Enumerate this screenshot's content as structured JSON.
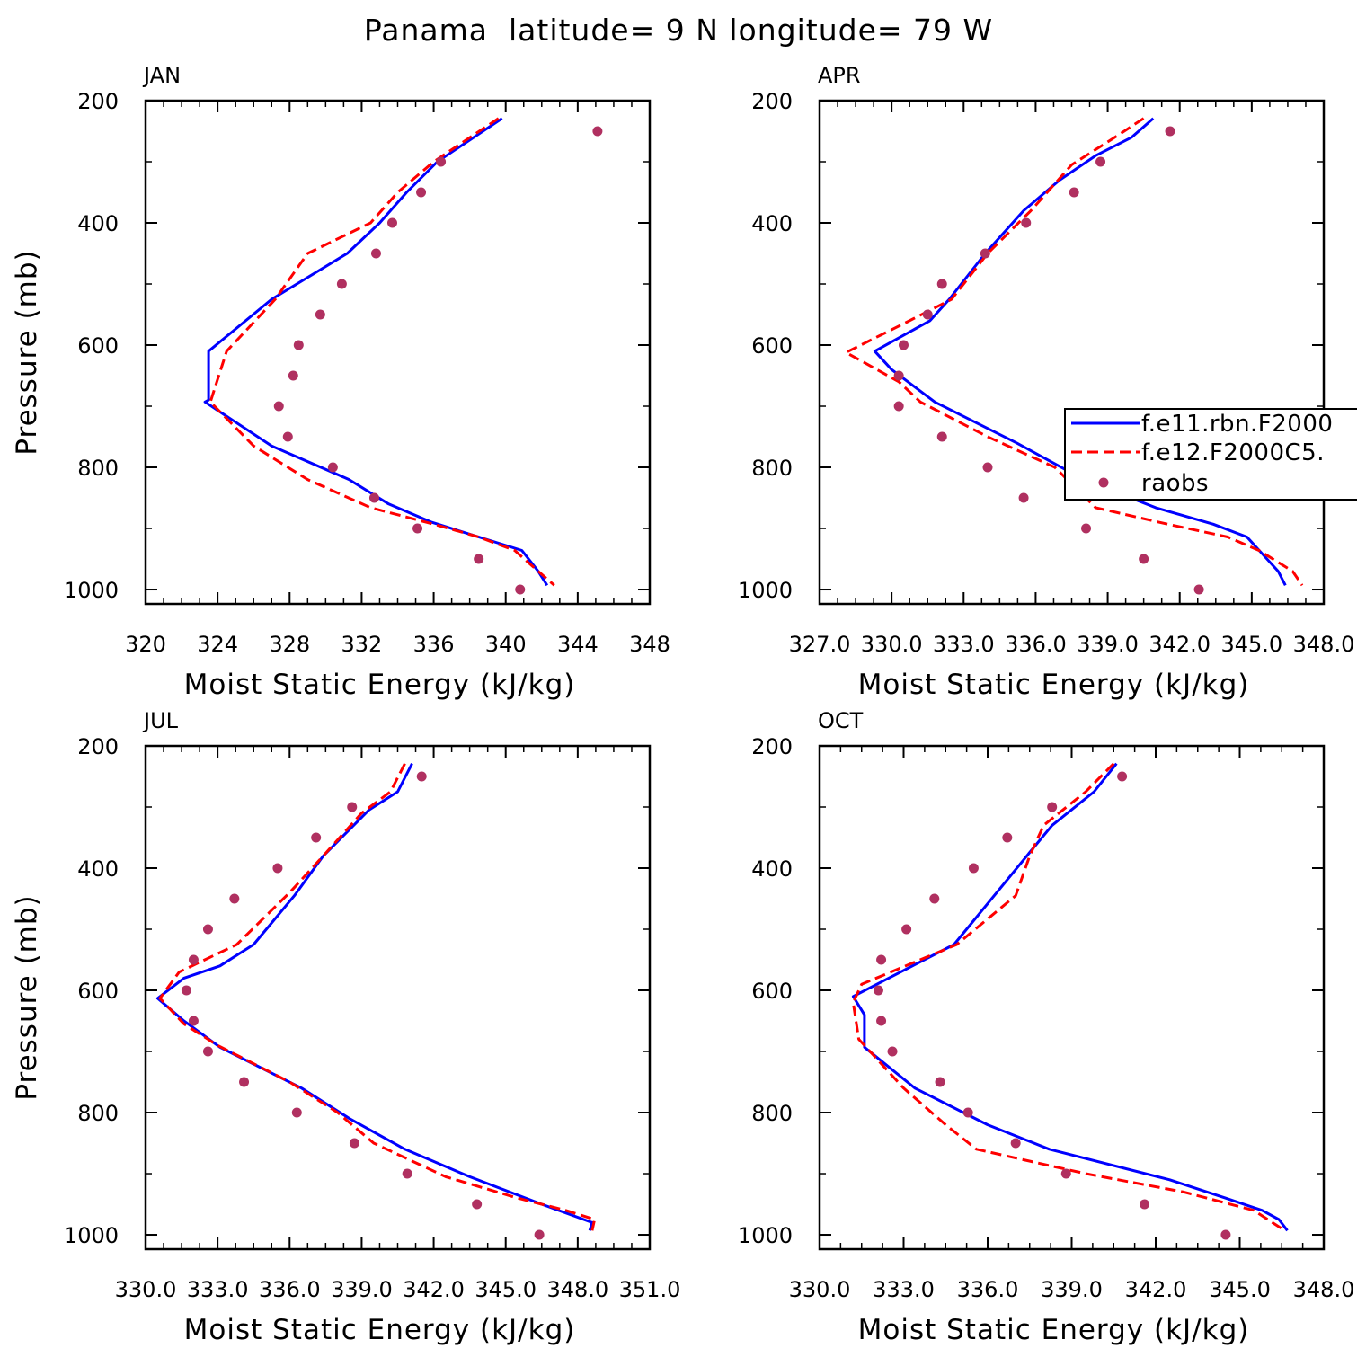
{
  "figure_title": "Panama  latitude= 9 N longitude= 79 W",
  "colors": {
    "model1": "#0000ff",
    "model2": "#ff0000",
    "obs": "#b03060"
  },
  "legend": {
    "entries": [
      "f.e11.rbn.F2000",
      "f.e12.F2000C5.",
      "raobs"
    ]
  },
  "chart_data": [
    {
      "type": "line",
      "title": "JAN",
      "xlabel": "Moist Static Energy (kJ/kg)",
      "ylabel": "Pressure (mb)",
      "xlim": [
        320,
        348
      ],
      "ylim": [
        1000,
        200
      ],
      "xticks": [
        320,
        324,
        328,
        332,
        336,
        340,
        344,
        348
      ],
      "xtick_labels": [
        "320",
        "324",
        "328",
        "332",
        "336",
        "340",
        "344",
        "348"
      ],
      "yticks": [
        200,
        400,
        600,
        800,
        1000
      ],
      "ytick_labels": [
        "200",
        "400",
        "600",
        "800",
        "1000"
      ],
      "series": [
        {
          "name": "f.e11.rbn.F2000",
          "style": "solid",
          "x": [
            339.8,
            336.2,
            334.5,
            333.0,
            331.2,
            327.0,
            323.5,
            323.5,
            323.3,
            327.0,
            331.3,
            333.5,
            335.9,
            338.5,
            340.9,
            341.8,
            342.3
          ],
          "p": [
            229,
            300,
            350,
            400,
            450,
            525,
            610,
            690,
            693,
            765,
            820,
            860,
            890,
            914,
            936,
            970,
            993
          ]
        },
        {
          "name": "f.e12.F2000C5.",
          "style": "dashed",
          "x": [
            339.6,
            336.0,
            334.0,
            332.5,
            329.0,
            327.2,
            324.5,
            323.6,
            326.0,
            329.0,
            332.5,
            336.0,
            338.5,
            340.5,
            341.8,
            342.7
          ],
          "p": [
            229,
            300,
            350,
            400,
            450,
            525,
            610,
            693,
            765,
            820,
            866,
            893,
            914,
            936,
            970,
            993
          ]
        },
        {
          "name": "raobs",
          "style": "points",
          "x": [
            345.1,
            336.4,
            335.3,
            333.7,
            332.8,
            330.9,
            329.7,
            328.5,
            328.2,
            327.4,
            327.9,
            330.4,
            332.7,
            335.1,
            338.5,
            340.8
          ],
          "p": [
            250,
            300,
            350,
            400,
            450,
            500,
            550,
            600,
            650,
            700,
            750,
            800,
            850,
            900,
            950,
            1000
          ]
        }
      ]
    },
    {
      "type": "line",
      "title": "APR",
      "xlabel": "Moist Static Energy (kJ/kg)",
      "ylabel": "",
      "xlim": [
        327.0,
        348.0
      ],
      "ylim": [
        1000,
        200
      ],
      "xticks": [
        327.0,
        330.0,
        333.0,
        336.0,
        339.0,
        342.0,
        345.0,
        348.0
      ],
      "xtick_labels": [
        "327.0",
        "330.0",
        "333.0",
        "336.0",
        "339.0",
        "342.0",
        "345.0",
        "348.0"
      ],
      "yticks": [
        200,
        400,
        600,
        800,
        1000
      ],
      "ytick_labels": [
        "200",
        "400",
        "600",
        "800",
        "1000"
      ],
      "series": [
        {
          "name": "f.e11.rbn.F2000",
          "style": "solid",
          "x": [
            340.9,
            340.0,
            338.5,
            337.0,
            335.5,
            333.9,
            332.4,
            331.6,
            329.3,
            330.0,
            331.8,
            335.2,
            338.0,
            341.0,
            343.4,
            344.8,
            346.1,
            346.4
          ],
          "p": [
            229,
            260,
            290,
            330,
            380,
            450,
            525,
            560,
            610,
            640,
            693,
            760,
            820,
            866,
            893,
            914,
            970,
            993
          ]
        },
        {
          "name": "f.e12.F2000C5.",
          "style": "dashed",
          "x": [
            340.5,
            339.3,
            337.5,
            335.8,
            334.0,
            332.5,
            330.5,
            328.1,
            330.3,
            331.2,
            334.0,
            336.8,
            338.5,
            341.5,
            344.0,
            345.3,
            346.7,
            347.1
          ],
          "p": [
            229,
            260,
            305,
            380,
            450,
            525,
            565,
            612,
            660,
            693,
            750,
            800,
            866,
            893,
            914,
            936,
            970,
            993
          ]
        },
        {
          "name": "raobs",
          "style": "points",
          "x": [
            341.6,
            338.7,
            337.6,
            335.6,
            333.9,
            332.1,
            331.5,
            330.5,
            330.3,
            330.3,
            332.1,
            334.0,
            335.5,
            338.1,
            340.5,
            342.8
          ],
          "p": [
            250,
            300,
            350,
            400,
            450,
            500,
            550,
            600,
            650,
            700,
            750,
            800,
            850,
            900,
            950,
            1000
          ]
        }
      ]
    },
    {
      "type": "line",
      "title": "JUL",
      "xlabel": "Moist Static Energy (kJ/kg)",
      "ylabel": "Pressure (mb)",
      "xlim": [
        330.0,
        351.0
      ],
      "ylim": [
        1000,
        200
      ],
      "xticks": [
        330.0,
        333.0,
        336.0,
        339.0,
        342.0,
        345.0,
        348.0,
        351.0
      ],
      "xtick_labels": [
        "330.0",
        "333.0",
        "336.0",
        "339.0",
        "342.0",
        "345.0",
        "348.0",
        "351.0"
      ],
      "yticks": [
        200,
        400,
        600,
        800,
        1000
      ],
      "ytick_labels": [
        "200",
        "400",
        "600",
        "800",
        "1000"
      ],
      "series": [
        {
          "name": "f.e11.rbn.F2000",
          "style": "solid",
          "x": [
            341.1,
            340.5,
            339.3,
            337.4,
            336.2,
            334.5,
            333.1,
            331.6,
            330.5,
            331.6,
            333.1,
            336.5,
            338.5,
            340.8,
            343.5,
            346.5,
            348.6,
            348.5
          ],
          "p": [
            229,
            275,
            305,
            380,
            445,
            525,
            560,
            580,
            613,
            650,
            693,
            760,
            810,
            860,
            905,
            950,
            980,
            993
          ]
        },
        {
          "name": "f.e12.F2000C5.",
          "style": "dashed",
          "x": [
            340.8,
            340.2,
            339.0,
            337.4,
            336.0,
            333.8,
            331.4,
            330.6,
            331.6,
            333.0,
            336.0,
            338.0,
            339.5,
            342.5,
            345.5,
            347.5,
            348.7,
            348.6
          ],
          "p": [
            229,
            275,
            310,
            380,
            440,
            525,
            570,
            613,
            655,
            690,
            750,
            800,
            850,
            905,
            940,
            960,
            975,
            993
          ]
        },
        {
          "name": "raobs",
          "style": "points",
          "x": [
            341.5,
            338.6,
            337.1,
            335.5,
            333.7,
            332.6,
            332.0,
            331.7,
            332.0,
            332.6,
            334.1,
            336.3,
            338.7,
            340.9,
            343.8,
            346.4
          ],
          "p": [
            250,
            300,
            350,
            400,
            450,
            500,
            550,
            600,
            650,
            700,
            750,
            800,
            850,
            900,
            950,
            1000
          ]
        }
      ]
    },
    {
      "type": "line",
      "title": "OCT",
      "xlabel": "Moist Static Energy (kJ/kg)",
      "ylabel": "",
      "xlim": [
        330.0,
        348.0
      ],
      "ylim": [
        1000,
        200
      ],
      "xticks": [
        330.0,
        333.0,
        336.0,
        339.0,
        342.0,
        345.0,
        348.0
      ],
      "xtick_labels": [
        "330.0",
        "333.0",
        "336.0",
        "339.0",
        "342.0",
        "345.0",
        "348.0"
      ],
      "yticks": [
        200,
        400,
        600,
        800,
        1000
      ],
      "ytick_labels": [
        "200",
        "400",
        "600",
        "800",
        "1000"
      ],
      "series": [
        {
          "name": "f.e11.rbn.F2000",
          "style": "solid",
          "x": [
            340.6,
            339.8,
            338.3,
            337.4,
            334.8,
            331.2,
            331.6,
            331.6,
            333.4,
            336.0,
            338.2,
            342.5,
            344.5,
            345.8,
            346.4,
            346.7
          ],
          "p": [
            229,
            275,
            330,
            380,
            525,
            610,
            640,
            693,
            760,
            820,
            860,
            910,
            940,
            960,
            975,
            993
          ]
        },
        {
          "name": "f.e12.F2000C5.",
          "style": "dashed",
          "x": [
            340.5,
            339.5,
            338.0,
            337.5,
            337.0,
            334.9,
            331.5,
            331.2,
            331.4,
            331.8,
            333.0,
            334.5,
            335.6,
            339.5,
            343.0,
            345.5,
            346.5
          ],
          "p": [
            229,
            275,
            330,
            380,
            445,
            525,
            590,
            620,
            680,
            700,
            760,
            820,
            860,
            900,
            930,
            960,
            990
          ]
        },
        {
          "name": "raobs",
          "style": "points",
          "x": [
            340.8,
            338.3,
            336.7,
            335.5,
            334.1,
            333.1,
            332.2,
            332.1,
            332.2,
            332.6,
            334.3,
            335.3,
            337.0,
            338.8,
            341.6,
            344.5
          ],
          "p": [
            250,
            300,
            350,
            400,
            450,
            500,
            550,
            600,
            650,
            700,
            750,
            800,
            850,
            900,
            950,
            1000
          ]
        }
      ]
    }
  ]
}
